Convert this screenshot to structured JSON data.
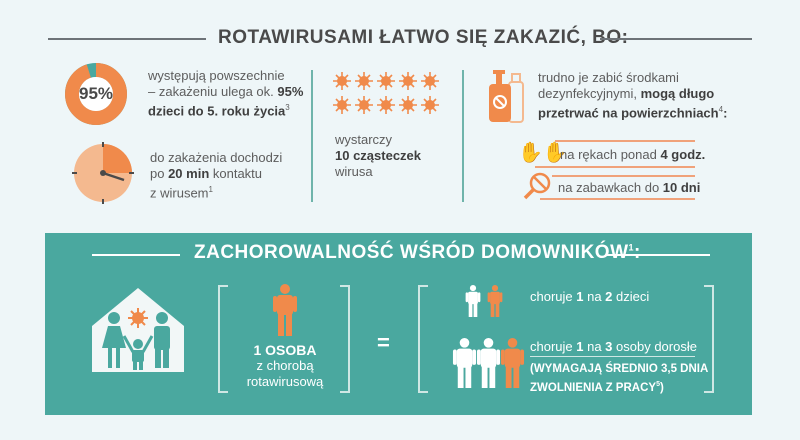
{
  "top": {
    "title": "ROTAWIRUSAMI ŁATWO SIĘ ZAKAZIĆ, BO:",
    "donut": {
      "label": "95%",
      "value_percent": 95
    },
    "fact1": {
      "line1": "występują powszechnie",
      "line2_pre": "– zakażeniu ulega ok. ",
      "line2_bold": "95%",
      "line3_bold": "dzieci do 5. roku życia",
      "sup": "3"
    },
    "clock": {
      "minutes": 20
    },
    "fact2": {
      "line1": "do zakażenia dochodzi",
      "line2_pre": "po ",
      "line2_bold": "20 min",
      "line2_post": " kontaktu",
      "line3": "z wirusem",
      "sup": "1"
    },
    "fact3": {
      "line1": "wystarczy",
      "line2_bold": "10 cząsteczek",
      "line3": "wirusa",
      "virus_count": 10
    },
    "fact4": {
      "line1": "trudno je zabić środkami",
      "line2_pre": "dezynfekcyjnymi, ",
      "line2_bold": "mogą długo",
      "line3_bold": "przetrwać na powierzchniach",
      "sup": "4",
      "colon": ":"
    },
    "hands": {
      "pre": "na rękach ponad ",
      "bold": "4 godz."
    },
    "toys": {
      "pre": "na zabawkach do ",
      "bold": "10 dni"
    }
  },
  "bottom": {
    "title": "ZACHOROWALNOŚĆ WŚRÓD DOMOWNIKÓW",
    "title_sup": "1",
    "title_colon": ":",
    "person": {
      "bold": "1 OSOBA",
      "line2": "z chorobą",
      "line3": "rotawirusową"
    },
    "equals": "=",
    "children": {
      "pre": "choruje ",
      "b1": "1",
      "mid": " na ",
      "b2": "2",
      "post": " dzieci"
    },
    "adults": {
      "pre": "choruje ",
      "b1": "1",
      "mid": " na ",
      "b2": "3",
      "post": " osoby dorosłe"
    },
    "note": {
      "line1": "(WYMAGAJĄ ŚREDNIO 3,5 DNIA",
      "line2": "ZWOLNIENIA Z PRACY",
      "sup": "5",
      "close": ")"
    }
  },
  "colors": {
    "orange": "#f08a4b",
    "light_orange": "#f4b98f",
    "teal": "#4aa89f",
    "background": "#eef6f8"
  }
}
